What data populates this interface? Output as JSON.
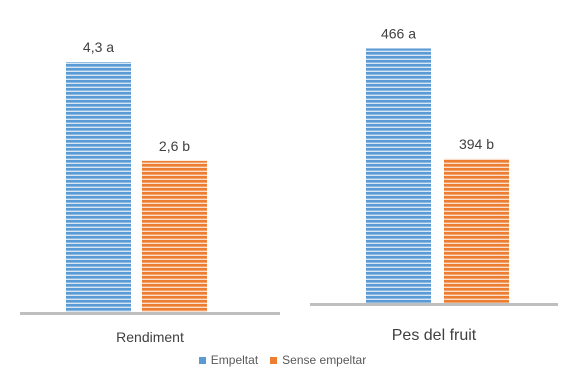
{
  "chart_data": [
    {
      "type": "bar",
      "xlabel": "Rendiment",
      "series": [
        {
          "name": "Empeltat",
          "value": 4.3,
          "label": "4,3 a",
          "color": "#5B9BD5"
        },
        {
          "name": "Sense empeltar",
          "value": 2.6,
          "label": "2,6 b",
          "color": "#ED7D31"
        }
      ],
      "ylim": [
        0,
        4.8
      ]
    },
    {
      "type": "bar",
      "xlabel": "Pes del fruit",
      "series": [
        {
          "name": "Empeltat",
          "value": 466,
          "label": "466 a",
          "color": "#5B9BD5"
        },
        {
          "name": "Sense empeltar",
          "value": 394,
          "label": "394 b",
          "color": "#ED7D31"
        }
      ],
      "ylim": [
        300,
        480
      ]
    }
  ],
  "legend": [
    {
      "name": "Empeltat",
      "color": "#5B9BD5"
    },
    {
      "name": "Sense empeltar",
      "color": "#ED7D31"
    }
  ],
  "legend_position": "bottom",
  "grid": false
}
